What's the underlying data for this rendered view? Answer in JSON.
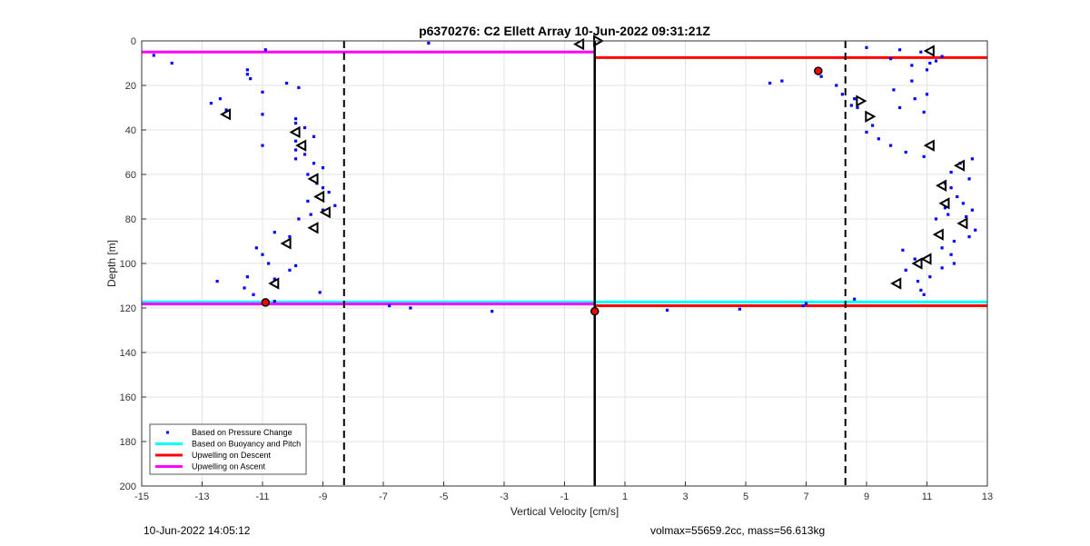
{
  "chart_data": {
    "type": "scatter",
    "title": "p6370276: C2 Ellett Array 10-Jun-2022 09:31:21Z",
    "xlabel": "Vertical Velocity [cm/s]",
    "ylabel": "Depth [m]",
    "xlim": [
      -15,
      13
    ],
    "ylim": [
      0,
      200
    ],
    "y_reversed": true,
    "grid": true,
    "x_ticks": [
      -15,
      -13,
      -11,
      -9,
      -7,
      -5,
      -3,
      -1,
      1,
      3,
      5,
      7,
      9,
      11,
      13
    ],
    "y_ticks": [
      0,
      20,
      40,
      60,
      80,
      100,
      120,
      140,
      160,
      180,
      200
    ],
    "x_tick_labels": [
      "-15",
      "-13",
      "-11",
      "-9",
      "-7",
      "-5",
      "-3",
      "-1",
      "1",
      "3",
      "5",
      "7",
      "9",
      "11",
      "13"
    ],
    "y_tick_labels": [
      "0",
      "20",
      "40",
      "60",
      "80",
      "100",
      "120",
      "140",
      "160",
      "180",
      "200"
    ],
    "legend_placement": "bottom-left",
    "legend": [
      {
        "label": "Based on Pressure Change",
        "style": "marker",
        "color": "#0000ff"
      },
      {
        "label": "Based on Buoyancy and Pitch",
        "style": "line",
        "color": "#00ffff"
      },
      {
        "label": "Upwelling on Descent",
        "style": "line",
        "color": "#ff0000"
      },
      {
        "label": "Upwelling on Ascent",
        "style": "line",
        "color": "#ff00ff"
      }
    ],
    "series": [
      {
        "name": "Based on Pressure Change",
        "marker": "dot",
        "color": "#0000ff",
        "points": [
          [
            -14.6,
            6.5
          ],
          [
            -14.0,
            10
          ],
          [
            -10.9,
            4
          ],
          [
            -5.5,
            1
          ],
          [
            -11.5,
            13
          ],
          [
            -11.5,
            15
          ],
          [
            -11.4,
            17
          ],
          [
            -11.0,
            23
          ],
          [
            -10.2,
            19
          ],
          [
            -9.8,
            21
          ],
          [
            -12.7,
            28
          ],
          [
            -12.4,
            26
          ],
          [
            -12.2,
            31
          ],
          [
            -11.0,
            33
          ],
          [
            -9.9,
            35
          ],
          [
            -9.9,
            37
          ],
          [
            -9.6,
            39
          ],
          [
            -9.3,
            43
          ],
          [
            -11.0,
            47
          ],
          [
            -9.9,
            45
          ],
          [
            -9.9,
            49
          ],
          [
            -9.9,
            53
          ],
          [
            -9.6,
            51
          ],
          [
            -9.3,
            55
          ],
          [
            -9.0,
            57
          ],
          [
            -9.5,
            60
          ],
          [
            -9.2,
            64
          ],
          [
            -9.0,
            66
          ],
          [
            -8.8,
            68
          ],
          [
            -8.6,
            74
          ],
          [
            -9.0,
            76
          ],
          [
            -9.5,
            72
          ],
          [
            -9.4,
            78
          ],
          [
            -9.8,
            80
          ],
          [
            -10.1,
            88
          ],
          [
            -10.6,
            86
          ],
          [
            -11.2,
            93
          ],
          [
            -11.0,
            96
          ],
          [
            -10.8,
            100
          ],
          [
            -10.6,
            107
          ],
          [
            -10.1,
            103
          ],
          [
            -9.9,
            101
          ],
          [
            -11.5,
            106
          ],
          [
            -11.6,
            111
          ],
          [
            -11.3,
            114
          ],
          [
            -12.5,
            108
          ],
          [
            -10.6,
            117
          ],
          [
            -9.1,
            113
          ],
          [
            -6.8,
            119
          ],
          [
            -6.1,
            120
          ],
          [
            -3.4,
            121.5
          ],
          [
            5.8,
            19
          ],
          [
            6.2,
            18
          ],
          [
            7.4,
            14
          ],
          [
            7.5,
            16
          ],
          [
            8.0,
            20
          ],
          [
            8.2,
            24
          ],
          [
            8.6,
            26
          ],
          [
            8.7,
            30
          ],
          [
            8.5,
            29
          ],
          [
            9.0,
            3
          ],
          [
            9.8,
            8
          ],
          [
            10.1,
            4
          ],
          [
            10.5,
            11
          ],
          [
            11.0,
            13
          ],
          [
            11.3,
            9
          ],
          [
            11.5,
            7
          ],
          [
            10.8,
            5
          ],
          [
            11.1,
            10
          ],
          [
            9.9,
            22
          ],
          [
            10.1,
            30
          ],
          [
            10.6,
            26
          ],
          [
            10.5,
            18
          ],
          [
            11.0,
            24
          ],
          [
            10.9,
            32
          ],
          [
            9.2,
            38
          ],
          [
            9.0,
            41
          ],
          [
            9.4,
            44
          ],
          [
            9.8,
            47
          ],
          [
            10.3,
            50
          ],
          [
            10.9,
            52
          ],
          [
            12.5,
            53
          ],
          [
            12.1,
            55
          ],
          [
            11.8,
            59
          ],
          [
            12.4,
            62
          ],
          [
            11.6,
            64
          ],
          [
            12.0,
            70
          ],
          [
            11.8,
            66
          ],
          [
            11.6,
            75
          ],
          [
            11.7,
            78
          ],
          [
            11.3,
            80
          ],
          [
            12.2,
            73
          ],
          [
            12.5,
            76
          ],
          [
            12.3,
            79
          ],
          [
            12.6,
            85
          ],
          [
            12.4,
            88
          ],
          [
            11.9,
            90
          ],
          [
            11.5,
            93
          ],
          [
            11.8,
            96
          ],
          [
            11.9,
            100
          ],
          [
            11.5,
            102
          ],
          [
            11.1,
            106
          ],
          [
            10.7,
            108
          ],
          [
            10.8,
            112
          ],
          [
            10.9,
            114
          ],
          [
            10.3,
            103
          ],
          [
            10.6,
            98
          ],
          [
            10.2,
            94
          ],
          [
            8.6,
            116
          ],
          [
            7.0,
            118
          ],
          [
            6.9,
            119
          ],
          [
            4.8,
            120.5
          ],
          [
            2.4,
            121
          ]
        ]
      },
      {
        "name": "",
        "marker": "triangle-left",
        "color": "#000000",
        "points": [
          [
            -12.2,
            33
          ],
          [
            -9.9,
            41
          ],
          [
            -9.7,
            47
          ],
          [
            -9.3,
            62
          ],
          [
            -9.1,
            70
          ],
          [
            -8.9,
            77
          ],
          [
            -9.3,
            84
          ],
          [
            -10.2,
            91
          ],
          [
            -10.6,
            109
          ],
          [
            -0.5,
            1.5
          ],
          [
            11.1,
            4.5
          ],
          [
            11.5,
            65
          ],
          [
            11.6,
            73
          ],
          [
            12.1,
            56
          ],
          [
            11.1,
            47
          ],
          [
            12.2,
            82
          ],
          [
            11.4,
            87
          ],
          [
            11.0,
            98
          ],
          [
            10.7,
            100
          ],
          [
            10.0,
            109
          ]
        ]
      },
      {
        "name": "",
        "marker": "triangle-right",
        "color": "#000000",
        "points": [
          [
            0.1,
            0
          ],
          [
            8.8,
            27
          ],
          [
            9.1,
            34
          ]
        ]
      },
      {
        "name": "",
        "marker": "star",
        "color": "#ff0000",
        "points": [
          [
            7.4,
            13.5
          ],
          [
            -10.9,
            117.5
          ],
          [
            0.0,
            121.5
          ]
        ]
      }
    ],
    "segments": [
      {
        "name": "Upwelling on Ascent",
        "color": "#ff00ff",
        "x": [
          -15,
          0
        ],
        "y": 5
      },
      {
        "name": "Upwelling on Descent",
        "color": "#ff0000",
        "x": [
          0,
          13
        ],
        "y": 7.5
      },
      {
        "name": "Based on Buoyancy and Pitch",
        "color": "#00ffff",
        "x": [
          -15,
          13
        ],
        "y": 117.3
      },
      {
        "name": "Upwelling on Descent",
        "color": "#ff0000",
        "x": [
          0,
          13
        ],
        "y": 119
      },
      {
        "name": "Upwelling on Ascent",
        "color": "#ff00ff",
        "x": [
          -15,
          0
        ],
        "y": 118.2
      }
    ],
    "vertical_lines": [
      {
        "x": 0,
        "style": "solid",
        "color": "#000000"
      },
      {
        "x": -8.3,
        "style": "dashed",
        "color": "#000000"
      },
      {
        "x": 8.3,
        "style": "dashed",
        "color": "#000000"
      }
    ]
  },
  "footer": {
    "timestamp": "10-Jun-2022 14:05:12",
    "summary": "volmax=55659.2cc, mass=56.613kg"
  }
}
